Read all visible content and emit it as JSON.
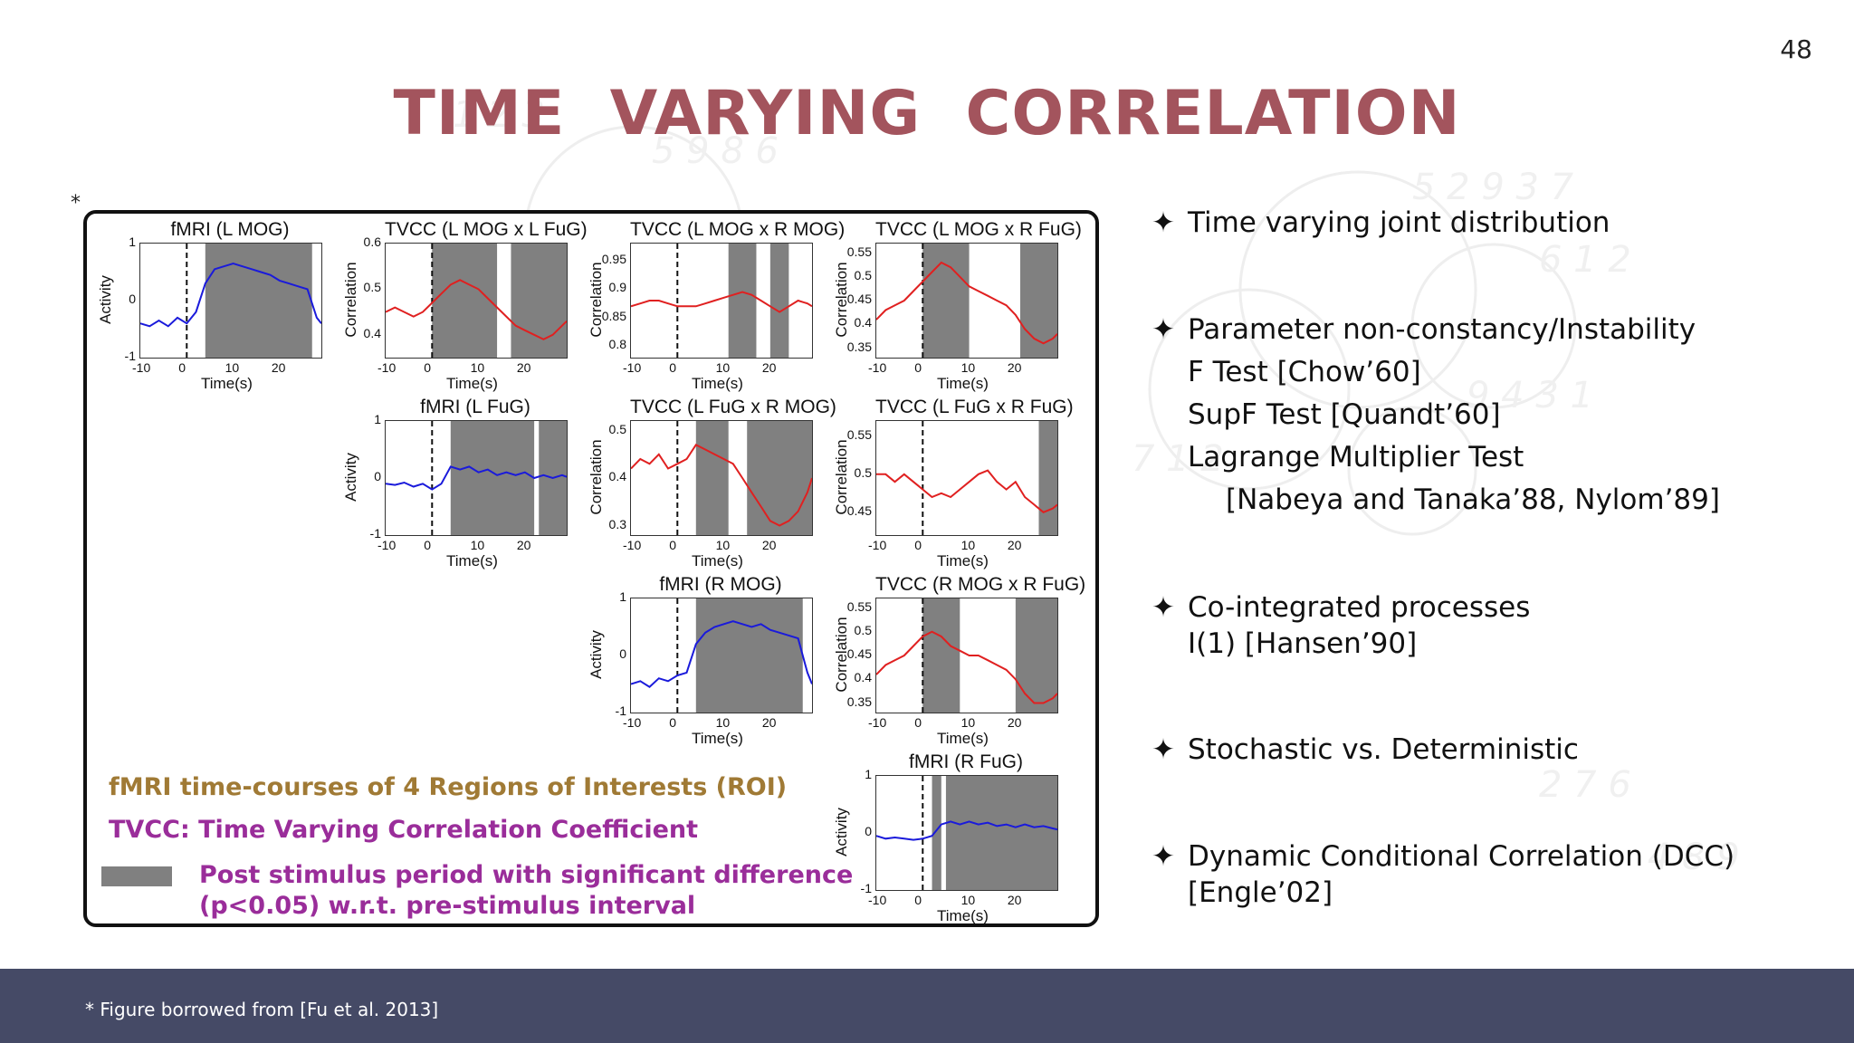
{
  "slide": {
    "page_number": "48",
    "title": "TIME  VARYING  CORRELATION",
    "asterisk": "*",
    "footer_note": "* Figure borrowed from [Fu et al. 2013]"
  },
  "figure": {
    "legend": {
      "roi_text": "fMRI time-courses of 4 Regions of Interests (ROI)",
      "tvcc_text": "TVCC: Time Varying Correlation Coefficient",
      "shade_text_line1": "Post stimulus period with significant difference",
      "shade_text_line2": "(p<0.05) w.r.t. pre-stimulus interval",
      "colors": {
        "roi": "#a07a35",
        "tvcc": "#9a2d9a",
        "shade": "#808080"
      }
    },
    "xlabel": "Time(s)",
    "x_ticks": [
      "-10",
      "0",
      "10",
      "20"
    ],
    "series_colors": {
      "fmri": "#1a1adb",
      "tvcc": "#e02020"
    }
  },
  "chart_data": [
    {
      "type": "line",
      "title": "fMRI (L MOG)",
      "xlabel": "Time(s)",
      "ylabel": "Activity",
      "xlim": [
        -10,
        29
      ],
      "ylim": [
        -1,
        1
      ],
      "y_ticks": [
        "1",
        "0",
        "-1"
      ],
      "shaded": [
        [
          4,
          27
        ]
      ],
      "x": [
        -10,
        -8,
        -6,
        -4,
        -2,
        0,
        2,
        4,
        6,
        8,
        10,
        12,
        14,
        16,
        18,
        20,
        22,
        24,
        26,
        28,
        29
      ],
      "values": [
        -0.4,
        -0.45,
        -0.35,
        -0.45,
        -0.3,
        -0.4,
        -0.2,
        0.3,
        0.55,
        0.6,
        0.65,
        0.6,
        0.55,
        0.5,
        0.45,
        0.35,
        0.3,
        0.25,
        0.2,
        -0.3,
        -0.4
      ]
    },
    {
      "type": "line",
      "title": "TVCC (L MOG x L FuG)",
      "xlabel": "Time(s)",
      "ylabel": "Correlation",
      "xlim": [
        -10,
        29
      ],
      "ylim": [
        0.35,
        0.6
      ],
      "y_ticks": [
        "0.6",
        "0.5",
        "0.4"
      ],
      "shaded": [
        [
          0,
          14
        ],
        [
          17,
          29
        ]
      ],
      "x": [
        -10,
        -8,
        -6,
        -4,
        -2,
        0,
        2,
        4,
        6,
        8,
        10,
        12,
        14,
        16,
        18,
        20,
        22,
        24,
        26,
        28,
        29
      ],
      "values": [
        0.45,
        0.46,
        0.45,
        0.44,
        0.45,
        0.47,
        0.49,
        0.51,
        0.52,
        0.51,
        0.5,
        0.48,
        0.46,
        0.44,
        0.42,
        0.41,
        0.4,
        0.39,
        0.4,
        0.42,
        0.43
      ]
    },
    {
      "type": "line",
      "title": "TVCC (L MOG x R MOG)",
      "xlabel": "Time(s)",
      "ylabel": "Correlation",
      "xlim": [
        -10,
        29
      ],
      "ylim": [
        0.78,
        0.98
      ],
      "y_ticks": [
        "0.95",
        "0.9",
        "0.85",
        "0.8"
      ],
      "shaded": [
        [
          11,
          17
        ],
        [
          20,
          24
        ]
      ],
      "x": [
        -10,
        -8,
        -6,
        -4,
        -2,
        0,
        2,
        4,
        6,
        8,
        10,
        12,
        14,
        16,
        18,
        20,
        22,
        24,
        26,
        28,
        29
      ],
      "values": [
        0.87,
        0.875,
        0.88,
        0.88,
        0.875,
        0.87,
        0.87,
        0.87,
        0.875,
        0.88,
        0.885,
        0.89,
        0.895,
        0.89,
        0.88,
        0.87,
        0.86,
        0.87,
        0.88,
        0.875,
        0.87
      ]
    },
    {
      "type": "line",
      "title": "TVCC (L MOG x R FuG)",
      "xlabel": "Time(s)",
      "ylabel": "Correlation",
      "xlim": [
        -10,
        29
      ],
      "ylim": [
        0.33,
        0.57
      ],
      "y_ticks": [
        "0.55",
        "0.5",
        "0.45",
        "0.4",
        "0.35"
      ],
      "shaded": [
        [
          0,
          10
        ],
        [
          21,
          29
        ]
      ],
      "x": [
        -10,
        -8,
        -6,
        -4,
        -2,
        0,
        2,
        4,
        6,
        8,
        10,
        12,
        14,
        16,
        18,
        20,
        22,
        24,
        26,
        28,
        29
      ],
      "values": [
        0.41,
        0.43,
        0.44,
        0.45,
        0.47,
        0.49,
        0.51,
        0.53,
        0.52,
        0.5,
        0.48,
        0.47,
        0.46,
        0.45,
        0.44,
        0.42,
        0.39,
        0.37,
        0.36,
        0.37,
        0.38
      ]
    },
    {
      "type": "line",
      "title": "fMRI (L FuG)",
      "xlabel": "Time(s)",
      "ylabel": "Activity",
      "xlim": [
        -10,
        29
      ],
      "ylim": [
        -1,
        1
      ],
      "y_ticks": [
        "1",
        "0",
        "-1"
      ],
      "shaded": [
        [
          4,
          22
        ],
        [
          23,
          29
        ]
      ],
      "x": [
        -10,
        -8,
        -6,
        -4,
        -2,
        0,
        2,
        4,
        6,
        8,
        10,
        12,
        14,
        16,
        18,
        20,
        22,
        24,
        26,
        28,
        29
      ],
      "values": [
        -0.1,
        -0.12,
        -0.08,
        -0.15,
        -0.1,
        -0.2,
        -0.1,
        0.2,
        0.15,
        0.2,
        0.1,
        0.15,
        0.05,
        0.1,
        0.05,
        0.1,
        0.0,
        0.05,
        0.0,
        0.05,
        0.02
      ]
    },
    {
      "type": "line",
      "title": "TVCC (L FuG x R MOG)",
      "xlabel": "Time(s)",
      "ylabel": "Correlation",
      "xlim": [
        -10,
        29
      ],
      "ylim": [
        0.28,
        0.52
      ],
      "y_ticks": [
        "0.5",
        "0.4",
        "0.3"
      ],
      "shaded": [
        [
          4,
          11
        ],
        [
          15,
          29
        ]
      ],
      "x": [
        -10,
        -8,
        -6,
        -4,
        -2,
        0,
        2,
        4,
        6,
        8,
        10,
        12,
        14,
        16,
        18,
        20,
        22,
        24,
        26,
        28,
        29
      ],
      "values": [
        0.42,
        0.44,
        0.43,
        0.45,
        0.42,
        0.43,
        0.44,
        0.47,
        0.46,
        0.45,
        0.44,
        0.43,
        0.4,
        0.37,
        0.34,
        0.31,
        0.3,
        0.31,
        0.33,
        0.37,
        0.4
      ]
    },
    {
      "type": "line",
      "title": "TVCC (L FuG x R FuG)",
      "xlabel": "Time(s)",
      "ylabel": "Correlation",
      "xlim": [
        -10,
        29
      ],
      "ylim": [
        0.42,
        0.57
      ],
      "y_ticks": [
        "0.55",
        "0.5",
        "0.45"
      ],
      "shaded": [
        [
          25,
          29
        ]
      ],
      "x": [
        -10,
        -8,
        -6,
        -4,
        -2,
        0,
        2,
        4,
        6,
        8,
        10,
        12,
        14,
        16,
        18,
        20,
        22,
        24,
        26,
        28,
        29
      ],
      "values": [
        0.5,
        0.5,
        0.49,
        0.5,
        0.49,
        0.48,
        0.47,
        0.475,
        0.47,
        0.48,
        0.49,
        0.5,
        0.505,
        0.49,
        0.48,
        0.49,
        0.47,
        0.46,
        0.45,
        0.455,
        0.46
      ]
    },
    {
      "type": "line",
      "title": "fMRI (R MOG)",
      "xlabel": "Time(s)",
      "ylabel": "Activity",
      "xlim": [
        -10,
        29
      ],
      "ylim": [
        -1,
        1
      ],
      "y_ticks": [
        "1",
        "0",
        "-1"
      ],
      "shaded": [
        [
          4,
          27
        ]
      ],
      "x": [
        -10,
        -8,
        -6,
        -4,
        -2,
        0,
        2,
        4,
        6,
        8,
        10,
        12,
        14,
        16,
        18,
        20,
        22,
        24,
        26,
        28,
        29
      ],
      "values": [
        -0.5,
        -0.45,
        -0.55,
        -0.4,
        -0.45,
        -0.35,
        -0.3,
        0.2,
        0.4,
        0.5,
        0.55,
        0.6,
        0.55,
        0.5,
        0.55,
        0.45,
        0.4,
        0.35,
        0.3,
        -0.3,
        -0.5
      ]
    },
    {
      "type": "line",
      "title": "TVCC (R MOG x R FuG)",
      "xlabel": "Time(s)",
      "ylabel": "Correlation",
      "xlim": [
        -10,
        29
      ],
      "ylim": [
        0.33,
        0.57
      ],
      "y_ticks": [
        "0.55",
        "0.5",
        "0.45",
        "0.4",
        "0.35"
      ],
      "shaded": [
        [
          0,
          8
        ],
        [
          20,
          29
        ]
      ],
      "x": [
        -10,
        -8,
        -6,
        -4,
        -2,
        0,
        2,
        4,
        6,
        8,
        10,
        12,
        14,
        16,
        18,
        20,
        22,
        24,
        26,
        28,
        29
      ],
      "values": [
        0.41,
        0.43,
        0.44,
        0.45,
        0.47,
        0.49,
        0.5,
        0.49,
        0.47,
        0.46,
        0.45,
        0.45,
        0.44,
        0.43,
        0.42,
        0.4,
        0.37,
        0.35,
        0.35,
        0.36,
        0.37
      ]
    },
    {
      "type": "line",
      "title": "fMRI (R FuG)",
      "xlabel": "Time(s)",
      "ylabel": "Activity",
      "xlim": [
        -10,
        29
      ],
      "ylim": [
        -1,
        1
      ],
      "y_ticks": [
        "1",
        "0",
        "-1"
      ],
      "shaded": [
        [
          2,
          4
        ],
        [
          5,
          29
        ]
      ],
      "x": [
        -10,
        -8,
        -6,
        -4,
        -2,
        0,
        2,
        4,
        6,
        8,
        10,
        12,
        14,
        16,
        18,
        20,
        22,
        24,
        26,
        28,
        29
      ],
      "values": [
        -0.05,
        -0.1,
        -0.08,
        -0.1,
        -0.12,
        -0.1,
        -0.05,
        0.15,
        0.2,
        0.15,
        0.2,
        0.15,
        0.18,
        0.12,
        0.15,
        0.1,
        0.15,
        0.1,
        0.12,
        0.08,
        0.06
      ]
    }
  ],
  "bullets": {
    "star": "✦",
    "b1": "Time varying joint distribution",
    "b2": "Parameter non-constancy/Instability",
    "b2_sub1": "F Test [Chow’60]",
    "b2_sub2": "SupF Test [Quandt’60]",
    "b2_sub3": "Lagrange Multiplier Test",
    "b2_sub4": "[Nabeya and Tanaka’88, Nylom’89]",
    "b3": "Co-integrated processes",
    "b3_sub1": "I(1) [Hansen’90]",
    "b4": "Stochastic vs. Deterministic",
    "b5": "Dynamic Conditional Correlation (DCC)",
    "b5_sub1": "[Engle’02]"
  }
}
